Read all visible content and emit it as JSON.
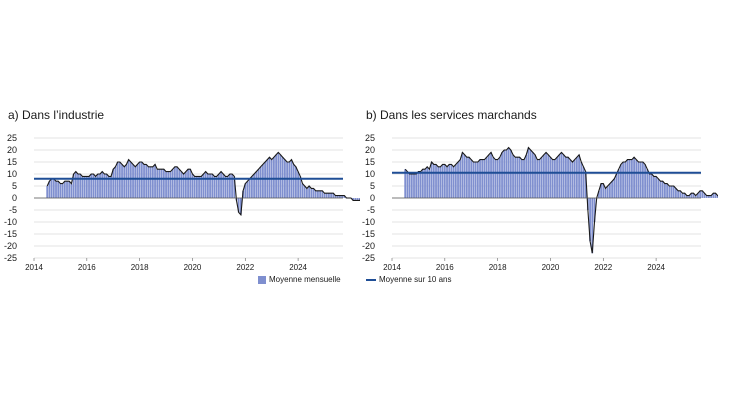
{
  "panels": [
    {
      "title": "a)  Dans l’industrie",
      "chart_data": {
        "type": "bar",
        "x_start": 2014.5,
        "x_step_months": 1,
        "values": [
          5,
          7,
          8,
          8,
          7,
          7,
          6,
          6,
          7,
          7,
          7,
          6,
          10,
          11,
          10,
          10,
          9,
          9,
          9,
          9,
          10,
          10,
          9,
          10,
          10,
          11,
          10,
          10,
          9,
          9,
          12,
          13,
          15,
          15,
          14,
          13,
          14,
          16,
          15,
          14,
          13,
          14,
          15,
          15,
          14,
          14,
          13,
          13,
          13,
          14,
          12,
          12,
          12,
          12,
          11,
          11,
          11,
          12,
          13,
          13,
          12,
          11,
          10,
          11,
          12,
          12,
          10,
          9,
          9,
          9,
          9,
          10,
          11,
          10,
          10,
          10,
          9,
          9,
          10,
          11,
          10,
          9,
          9,
          10,
          10,
          9,
          -1,
          -6,
          -7,
          3,
          6,
          7,
          8,
          9,
          10,
          11,
          12,
          13,
          14,
          15,
          16,
          17,
          16,
          17,
          18,
          19,
          18,
          17,
          16,
          15,
          15,
          16,
          14,
          13,
          11,
          9,
          6,
          5,
          4,
          5,
          4,
          4,
          3,
          3,
          3,
          3,
          2,
          2,
          2,
          2,
          2,
          1,
          1,
          1,
          1,
          1,
          0,
          0,
          0,
          -1,
          -1,
          -1,
          -1,
          0,
          0,
          -1,
          -1,
          -1,
          -1,
          -2,
          -1,
          0,
          -1,
          -1,
          -2,
          -1,
          -1,
          -2
        ],
        "reference_line": 8,
        "xlim": [
          2014,
          2025.7
        ],
        "ylim": [
          -25,
          25
        ],
        "yticks": [
          25,
          20,
          15,
          10,
          5,
          0,
          -5,
          -10,
          -15,
          -20,
          -25
        ],
        "xticks": [
          2014,
          2016,
          2018,
          2020,
          2022,
          2024
        ],
        "bar_color": "#7f8fcf",
        "outline_color": "#1a1a1a",
        "reference_color": "#1f4e96",
        "grid": true
      },
      "legend": {
        "label": "Moyenne mensuelle",
        "kind": "bar"
      }
    },
    {
      "title": "b)  Dans les services marchands",
      "chart_data": {
        "type": "bar",
        "x_start": 2014.5,
        "x_step_months": 1,
        "values": [
          12,
          11,
          10,
          10,
          10,
          10,
          11,
          11,
          12,
          12,
          13,
          12,
          15,
          14,
          14,
          13,
          13,
          14,
          14,
          13,
          14,
          14,
          13,
          14,
          15,
          16,
          19,
          18,
          17,
          17,
          16,
          15,
          15,
          15,
          16,
          16,
          16,
          17,
          18,
          19,
          17,
          16,
          16,
          17,
          19,
          20,
          20,
          21,
          20,
          18,
          17,
          17,
          17,
          16,
          16,
          18,
          21,
          20,
          19,
          18,
          16,
          16,
          17,
          18,
          19,
          18,
          17,
          16,
          16,
          17,
          18,
          19,
          18,
          17,
          17,
          16,
          15,
          16,
          17,
          18,
          15,
          13,
          11,
          -5,
          -18,
          -23,
          -10,
          0,
          3,
          6,
          6,
          4,
          5,
          6,
          7,
          8,
          10,
          12,
          14,
          15,
          15,
          16,
          16,
          16,
          17,
          16,
          15,
          15,
          15,
          14,
          12,
          10,
          10,
          9,
          9,
          8,
          7,
          7,
          6,
          6,
          5,
          5,
          5,
          4,
          3,
          3,
          2,
          2,
          1,
          1,
          2,
          2,
          1,
          2,
          3,
          3,
          2,
          1,
          1,
          1,
          2,
          2,
          1,
          0,
          1,
          2,
          2,
          1,
          0,
          1,
          2,
          2,
          1,
          1,
          0
        ],
        "reference_line": 10.5,
        "xlim": [
          2014,
          2025.7
        ],
        "ylim": [
          -25,
          25
        ],
        "yticks": [
          25,
          20,
          15,
          10,
          5,
          0,
          -5,
          -10,
          -15,
          -20,
          -25
        ],
        "xticks": [
          2014,
          2016,
          2018,
          2020,
          2022,
          2024
        ],
        "bar_color": "#7f8fcf",
        "outline_color": "#1a1a1a",
        "reference_color": "#1f4e96",
        "grid": true
      },
      "legend": {
        "label": "Moyenne sur 10 ans",
        "kind": "line"
      }
    }
  ]
}
